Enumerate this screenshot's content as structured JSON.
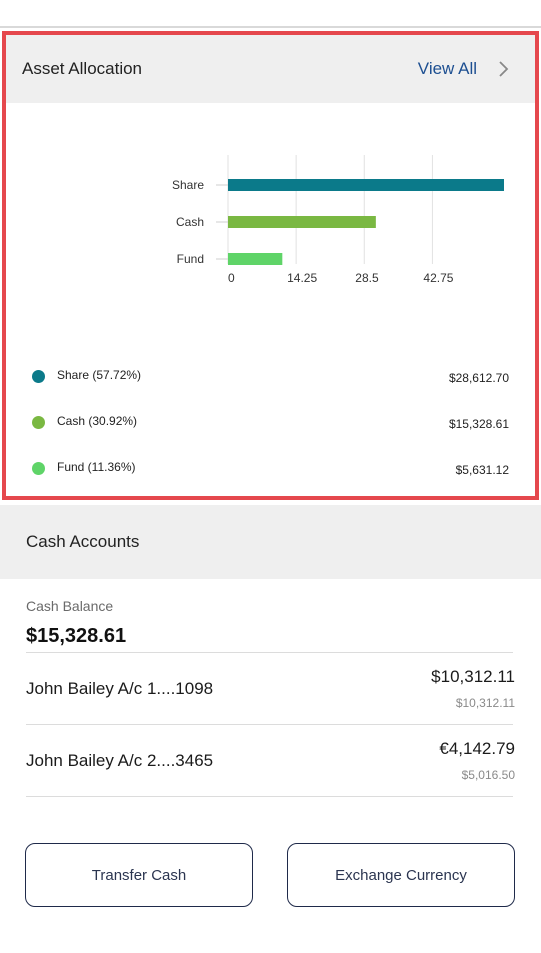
{
  "asset_allocation": {
    "title": "Asset Allocation",
    "view_all_label": "View All",
    "chevron_icon": "chevron-right-icon",
    "colors": {
      "share": "#0b7a8a",
      "cash": "#7ab842",
      "fund": "#5fd468"
    },
    "legend": [
      {
        "label": "Share (57.72%)",
        "value": "$28,612.70",
        "color": "#0b7a8a"
      },
      {
        "label": "Cash (30.92%)",
        "value": "$15,328.61",
        "color": "#7ab842"
      },
      {
        "label": "Fund (11.36%)",
        "value": "$5,631.12",
        "color": "#5fd468"
      }
    ]
  },
  "chart_data": {
    "type": "bar",
    "orientation": "horizontal",
    "categories": [
      "Share",
      "Cash",
      "Fund"
    ],
    "values": [
      57.72,
      30.92,
      11.36
    ],
    "colors": [
      "#0b7a8a",
      "#7ab842",
      "#5fd468"
    ],
    "x_ticks": [
      "0",
      "14.25",
      "28.5",
      "42.75"
    ],
    "xlim": [
      0,
      57.72
    ],
    "grid": true
  },
  "cash_accounts": {
    "title": "Cash Accounts",
    "balance_label": "Cash Balance",
    "balance_value": "$15,328.61",
    "accounts": [
      {
        "name": "John Bailey A/c 1....1098",
        "amount": "$10,312.11",
        "sub_amount": "$10,312.11"
      },
      {
        "name": "John Bailey A/c 2....3465",
        "amount": "€4,142.79",
        "sub_amount": "$5,016.50"
      }
    ]
  },
  "actions": {
    "transfer_label": "Transfer Cash",
    "exchange_label": "Exchange Currency"
  }
}
